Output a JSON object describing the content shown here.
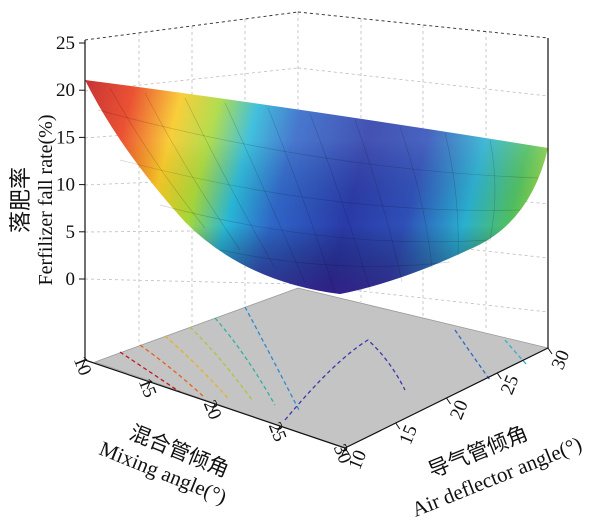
{
  "chart_data": {
    "type": "surface3d",
    "z_axis": {
      "label_cn": "落肥率",
      "label_en": "Ferfilizer fall rate(%)",
      "ticks": [
        "0",
        "5",
        "10",
        "15",
        "20",
        "25"
      ],
      "range": [
        0,
        25
      ]
    },
    "x_axis": {
      "label_cn": "混合管倾角",
      "label_en": "Mixing angle(°)",
      "ticks": [
        "10",
        "15",
        "20",
        "25",
        "30"
      ],
      "range": [
        10,
        30
      ]
    },
    "y_axis": {
      "label_cn": "导气管倾角",
      "label_en": "Air deflector angle(°)",
      "ticks": [
        "10",
        "15",
        "20",
        "25",
        "30"
      ],
      "range": [
        10,
        30
      ]
    },
    "colorscale": [
      "#5b1aa0",
      "#2a3aa8",
      "#2f66c8",
      "#2ab0d8",
      "#38c070",
      "#c8dc30",
      "#f8d020",
      "#f07018",
      "#c01818"
    ],
    "surface_corners": [
      {
        "mixing_angle": 10,
        "air_deflector_angle": 10,
        "fall_rate": 21.3
      },
      {
        "mixing_angle": 30,
        "air_deflector_angle": 10,
        "fall_rate": 0.5
      },
      {
        "mixing_angle": 30,
        "air_deflector_angle": 30,
        "fall_rate": 12.8
      },
      {
        "mixing_angle": 10,
        "air_deflector_angle": 30,
        "fall_rate": 8.2
      }
    ],
    "grid": true,
    "floor_contours": true
  }
}
